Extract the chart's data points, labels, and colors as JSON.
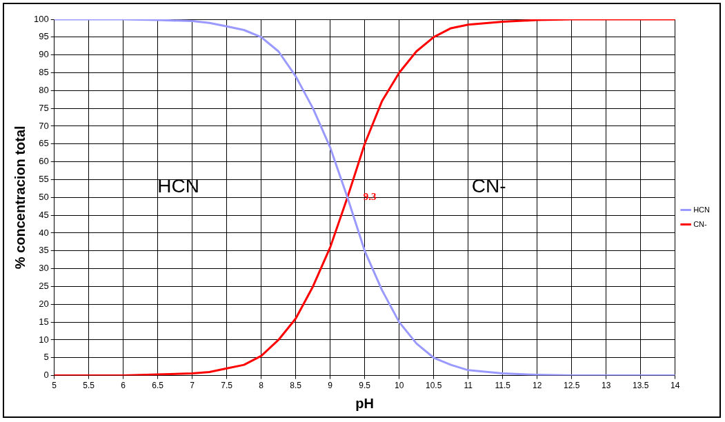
{
  "chart_data": {
    "type": "line",
    "xlabel": "pH",
    "ylabel": "% concentracion total",
    "x": [
      5,
      5.5,
      6,
      6.5,
      7,
      7.25,
      7.5,
      7.75,
      8,
      8.25,
      8.5,
      8.75,
      9,
      9.25,
      9.5,
      9.75,
      10,
      10.25,
      10.5,
      10.75,
      11,
      11.5,
      12,
      12.5,
      13,
      14
    ],
    "series": [
      {
        "name": "HCN",
        "color": "#9999ff",
        "values": [
          100,
          100,
          100,
          99.8,
          99.5,
          99,
          98,
          97,
          95,
          91,
          84,
          75,
          64,
          50,
          35,
          24,
          15,
          9,
          5,
          3,
          1.5,
          0.6,
          0.2,
          0,
          0,
          0
        ]
      },
      {
        "name": "CN-",
        "color": "#ff0000",
        "values": [
          0,
          0,
          0,
          0.3,
          0.6,
          1,
          2,
          3,
          5.5,
          10,
          16,
          25,
          36,
          50,
          65,
          77,
          85,
          91,
          95,
          97.5,
          98.5,
          99.3,
          99.8,
          100,
          100,
          100
        ]
      }
    ],
    "xlim": [
      5,
      14
    ],
    "xticks": [
      5,
      5.5,
      6,
      6.5,
      7,
      7.5,
      8,
      8.5,
      9,
      9.5,
      10,
      10.5,
      11,
      11.5,
      12,
      12.5,
      13,
      13.5,
      14
    ],
    "ylim": [
      0,
      100
    ],
    "yticks": [
      0,
      5,
      10,
      15,
      20,
      25,
      30,
      35,
      40,
      45,
      50,
      55,
      60,
      65,
      70,
      75,
      80,
      85,
      90,
      95,
      100
    ],
    "annotations": [
      "HCN",
      "CN-",
      {
        "text": "9.3",
        "x": 9.3,
        "y": 50
      }
    ],
    "grid": true,
    "legend": "right",
    "marker": "none",
    "line_style": "solid"
  }
}
